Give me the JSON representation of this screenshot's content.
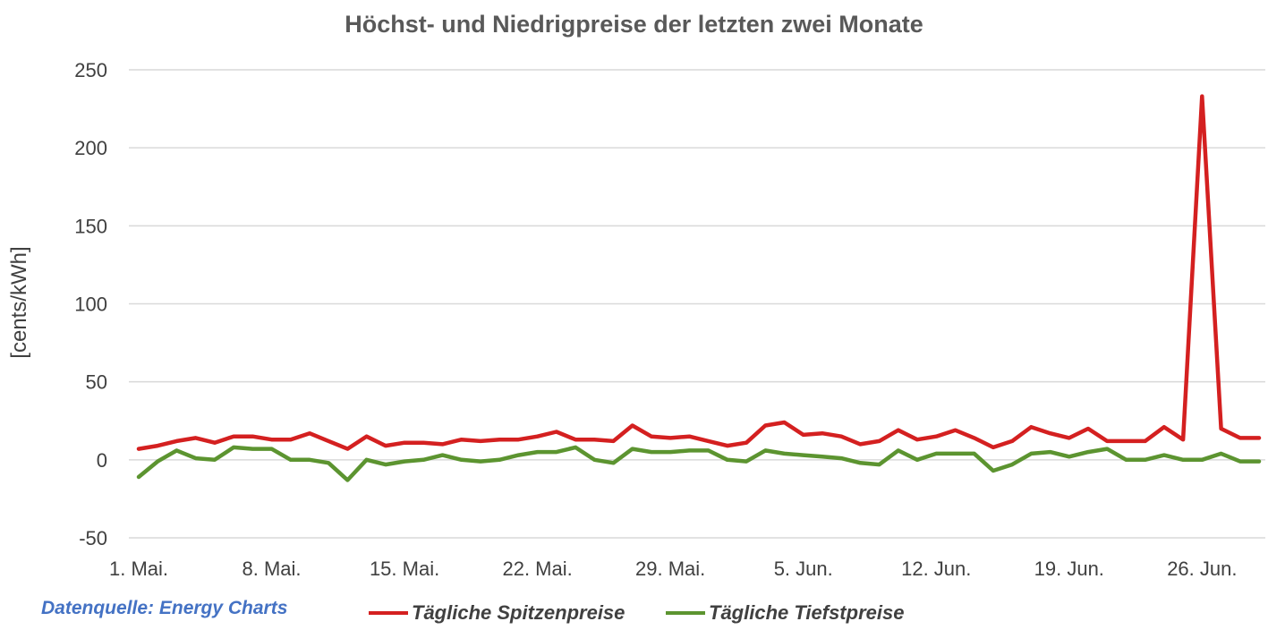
{
  "chart_data": {
    "type": "line",
    "title": "Höchst- und Niedrigpreise der letzten zwei Monate",
    "ylabel": "[cents/kWh]",
    "xlabel": "",
    "ylim": [
      -50,
      250
    ],
    "yticks": [
      250,
      200,
      150,
      100,
      50,
      0,
      -50
    ],
    "xtick_labels": [
      "1. Mai.",
      "8. Mai.",
      "15. Mai.",
      "22. Mai.",
      "29. Mai.",
      "5. Jun.",
      "12. Jun.",
      "19. Jun.",
      "26. Jun."
    ],
    "x": [
      "1. Mai.",
      "2. Mai.",
      "3. Mai.",
      "4. Mai.",
      "5. Mai.",
      "6. Mai.",
      "7. Mai.",
      "8. Mai.",
      "9. Mai.",
      "10. Mai.",
      "11. Mai.",
      "12. Mai.",
      "13. Mai.",
      "14. Mai.",
      "15. Mai.",
      "16. Mai.",
      "17. Mai.",
      "18. Mai.",
      "19. Mai.",
      "20. Mai.",
      "21. Mai.",
      "22. Mai.",
      "23. Mai.",
      "24. Mai.",
      "25. Mai.",
      "26. Mai.",
      "27. Mai.",
      "28. Mai.",
      "29. Mai.",
      "30. Mai.",
      "31. Mai.",
      "1. Jun.",
      "2. Jun.",
      "3. Jun.",
      "4. Jun.",
      "5. Jun.",
      "6. Jun.",
      "7. Jun.",
      "8. Jun.",
      "9. Jun.",
      "10. Jun.",
      "11. Jun.",
      "12. Jun.",
      "13. Jun.",
      "14. Jun.",
      "15. Jun.",
      "16. Jun.",
      "17. Jun.",
      "18. Jun.",
      "19. Jun.",
      "20. Jun.",
      "21. Jun.",
      "22. Jun.",
      "23. Jun.",
      "24. Jun.",
      "25. Jun.",
      "26. Jun.",
      "27. Jun.",
      "28. Jun.",
      "29. Jun."
    ],
    "grid": true,
    "legend_position": "bottom",
    "series": [
      {
        "name": "Tägliche Spitzenpreise",
        "color": "#d42020",
        "values": [
          7,
          9,
          12,
          14,
          11,
          15,
          15,
          13,
          13,
          17,
          12,
          7,
          15,
          9,
          11,
          11,
          10,
          13,
          12,
          13,
          13,
          15,
          18,
          13,
          13,
          12,
          22,
          15,
          14,
          15,
          12,
          9,
          11,
          22,
          24,
          16,
          17,
          15,
          10,
          12,
          19,
          13,
          15,
          19,
          14,
          8,
          12,
          21,
          17,
          14,
          20,
          12,
          12,
          12,
          21,
          13,
          233,
          20,
          14,
          14
        ]
      },
      {
        "name": "Tägliche Tiefstpreise",
        "color": "#5c9430",
        "values": [
          -11,
          -1,
          6,
          1,
          0,
          8,
          7,
          7,
          0,
          0,
          -2,
          -13,
          0,
          -3,
          -1,
          0,
          3,
          0,
          -1,
          0,
          3,
          5,
          5,
          8,
          0,
          -2,
          7,
          5,
          5,
          6,
          6,
          0,
          -1,
          6,
          4,
          3,
          2,
          1,
          -2,
          -3,
          6,
          0,
          4,
          4,
          4,
          -7,
          -3,
          4,
          5,
          2,
          5,
          7,
          0,
          0,
          3,
          0,
          0,
          4,
          -1,
          -1
        ]
      }
    ]
  },
  "source_note": "Datenquelle: Energy Charts"
}
